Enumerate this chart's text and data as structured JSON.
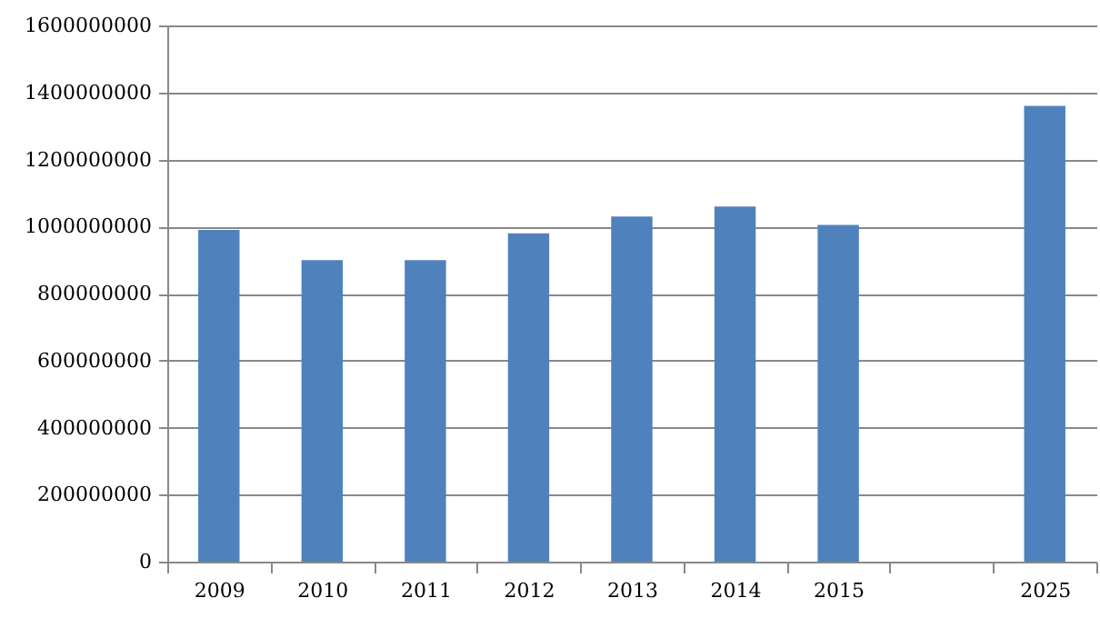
{
  "chart_data": {
    "type": "bar",
    "categories": [
      "2009",
      "2010",
      "2011",
      "2012",
      "2013",
      "2014",
      "2015",
      null,
      "2025"
    ],
    "values": [
      990000000,
      900000000,
      900000000,
      980000000,
      1030000000,
      1060000000,
      1005000000,
      null,
      1360000000
    ],
    "color": "#4f81bd",
    "ylim": [
      0,
      1600000000
    ],
    "yticks": [
      0,
      200000000,
      400000000,
      600000000,
      800000000,
      1000000000,
      1200000000,
      1400000000,
      1600000000
    ],
    "grid": "y"
  }
}
